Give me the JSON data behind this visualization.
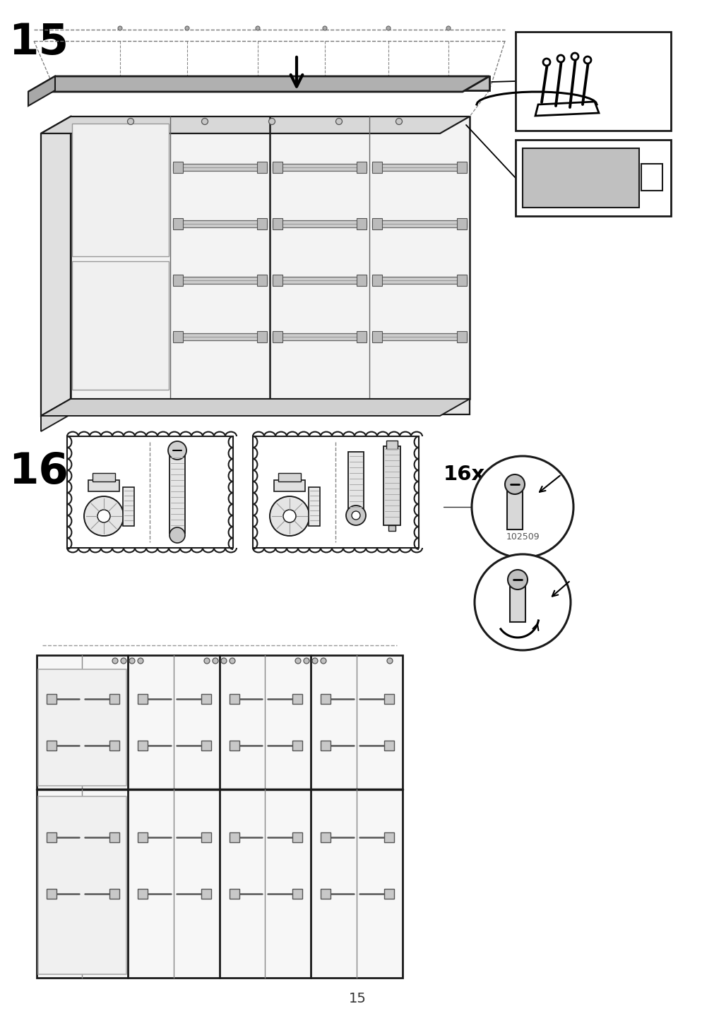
{
  "background_color": "#ffffff",
  "line_color": "#1a1a1a",
  "gray_fill": "#c0c0c0",
  "light_gray": "#e8e8e8",
  "dark_color": "#000000",
  "page_number": "15"
}
